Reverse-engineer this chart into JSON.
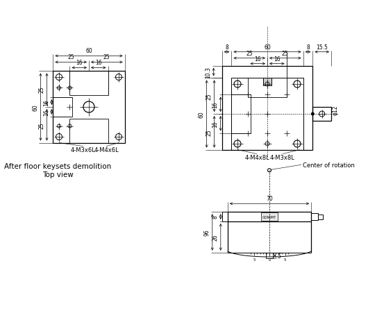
{
  "bg_color": "#ffffff",
  "line_color": "#000000",
  "title1": "After floor keysets demolition",
  "title2": "Top view",
  "label_center_rot": "Center of rotation",
  "view1_labels": [
    "4-M3x6L",
    "4-M4x6L"
  ],
  "view2_labels": [
    "4-M4x8L",
    "4-M3x8L"
  ],
  "font_size": 6.0,
  "dim_font_size": 5.5,
  "sc": 1.72
}
